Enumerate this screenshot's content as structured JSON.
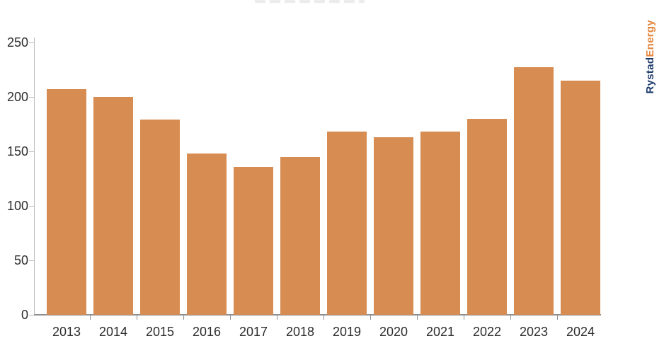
{
  "chart_data": {
    "type": "bar",
    "title": "",
    "categories": [
      "2013",
      "2014",
      "2015",
      "2016",
      "2017",
      "2018",
      "2019",
      "2020",
      "2021",
      "2022",
      "2023",
      "2024"
    ],
    "values": [
      207,
      200,
      179,
      148,
      136,
      145,
      168,
      163,
      168,
      180,
      227,
      215
    ],
    "xlabel": "",
    "ylabel": "",
    "ylim": [
      0,
      250
    ],
    "yticks": [
      0,
      50,
      100,
      150,
      200,
      250
    ],
    "grid": false,
    "legend": "none",
    "bar_color": "#d78c52",
    "axis_color": "#bdbdbd",
    "baseline_color": "#8f8f8f",
    "tick_label_color": "#2d2d2d"
  },
  "branding": {
    "logo_part1": "Rystad",
    "logo_part2": "Energy",
    "logo_color1": "#1d3a6b",
    "logo_color2": "#e5863c"
  }
}
